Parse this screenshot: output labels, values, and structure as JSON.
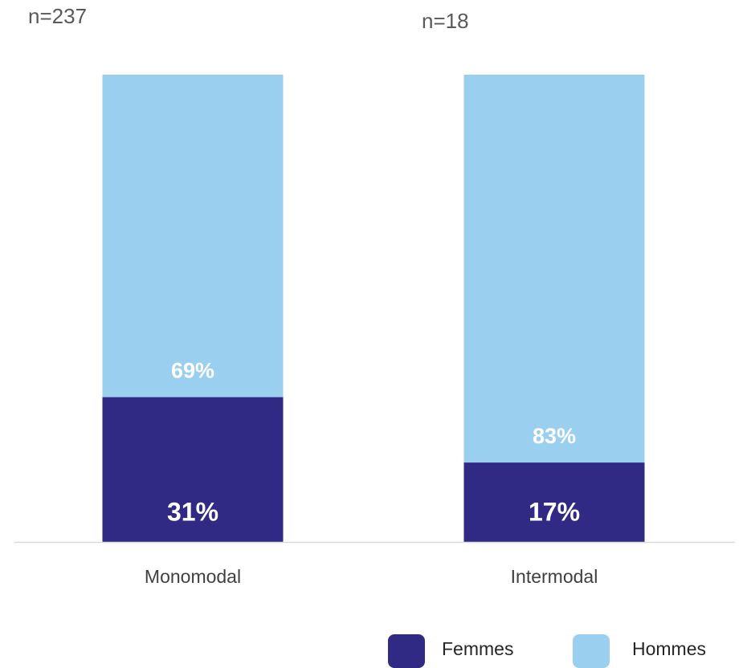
{
  "chart_data": {
    "type": "stacked_bar",
    "categories": [
      "Monomodal",
      "Intermodal"
    ],
    "annotations": [
      "n=237",
      "n=18"
    ],
    "series": [
      {
        "name": "Femmes",
        "color": "#312a84",
        "values": [
          31,
          17
        ],
        "value_labels": [
          "31%",
          "17%"
        ]
      },
      {
        "name": "Hommes",
        "color": "#9bcfef",
        "values": [
          69,
          83
        ],
        "value_labels": [
          "69%",
          "83%"
        ]
      }
    ],
    "ylim": [
      0,
      100
    ],
    "legend": "bottom-right"
  }
}
